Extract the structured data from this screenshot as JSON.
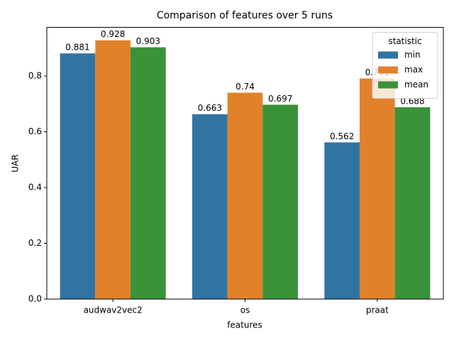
{
  "chart_data": {
    "type": "bar",
    "title": "Comparison of features over 5 runs",
    "x_label": "features",
    "y_label": "UAR",
    "categories": [
      "audwav2vec2",
      "os",
      "praat"
    ],
    "series": [
      {
        "name": "min",
        "color": "#3274a1",
        "values": [
          0.881,
          0.663,
          0.562
        ]
      },
      {
        "name": "max",
        "color": "#e1812c",
        "values": [
          0.928,
          0.74,
          0.791
        ]
      },
      {
        "name": "mean",
        "color": "#3a923a",
        "values": [
          0.903,
          0.697,
          0.688
        ]
      }
    ],
    "ylim": [
      0,
      0.9744
    ],
    "yticks": [
      {
        "value": 0,
        "label": "0.0"
      },
      0.2,
      0.4,
      0.6,
      0.8
    ],
    "legend_title": "statistic",
    "legend_position": "upper right"
  }
}
